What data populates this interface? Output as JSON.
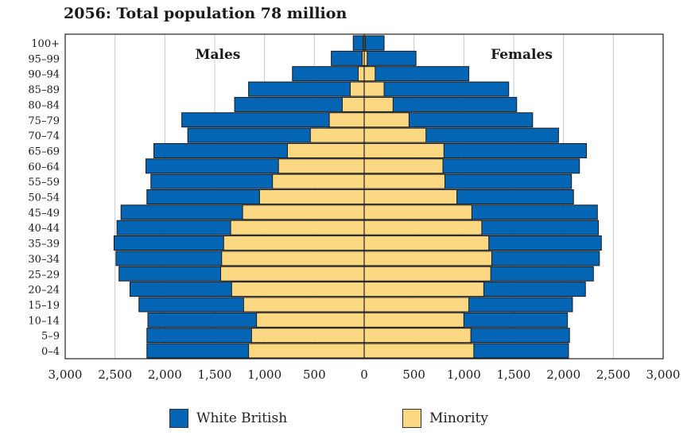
{
  "chart_data": {
    "type": "bar",
    "subtype": "population-pyramid",
    "title": "2056: Total population 78 million",
    "left_label": "Males",
    "right_label": "Females",
    "xlim": [
      -3000,
      3000
    ],
    "x_ticks": [
      -3000,
      -2500,
      -2000,
      -1500,
      -1000,
      -500,
      0,
      500,
      1000,
      1500,
      2000,
      2500,
      3000
    ],
    "x_tick_labels": [
      "3,000",
      "2,500",
      "2,000",
      "1,500",
      "1,000",
      "500",
      "0",
      "500",
      "1,000",
      "1,500",
      "2,000",
      "2,500",
      "3,000"
    ],
    "categories": [
      "100+",
      "95–99",
      "90–94",
      "85–89",
      "80–84",
      "75–79",
      "70–74",
      "65–69",
      "60–64",
      "55–59",
      "50–54",
      "45–49",
      "40–44",
      "35–39",
      "30–34",
      "25–29",
      "20–24",
      "15–19",
      "10–14",
      "5–9",
      "0–4"
    ],
    "series": [
      {
        "name": "Minority",
        "side": "male",
        "values": [
          10,
          20,
          60,
          140,
          220,
          350,
          540,
          770,
          860,
          920,
          1050,
          1220,
          1340,
          1410,
          1430,
          1440,
          1330,
          1210,
          1080,
          1130,
          1160
        ]
      },
      {
        "name": "White British",
        "side": "male",
        "values": [
          110,
          330,
          720,
          1160,
          1300,
          1830,
          1770,
          2110,
          2190,
          2140,
          2180,
          2440,
          2480,
          2510,
          2490,
          2460,
          2350,
          2260,
          2170,
          2180,
          2180
        ]
      },
      {
        "name": "Minority",
        "side": "female",
        "values": [
          10,
          30,
          110,
          200,
          290,
          450,
          620,
          800,
          790,
          810,
          930,
          1080,
          1180,
          1250,
          1280,
          1270,
          1200,
          1050,
          1000,
          1070,
          1100
        ]
      },
      {
        "name": "White British",
        "side": "female",
        "values": [
          200,
          520,
          1050,
          1450,
          1530,
          1690,
          1950,
          2230,
          2160,
          2080,
          2100,
          2340,
          2350,
          2380,
          2360,
          2300,
          2220,
          2090,
          2040,
          2060,
          2050
        ]
      }
    ],
    "legend": [
      {
        "label": "White British",
        "color": "#0565b5"
      },
      {
        "label": "Minority",
        "color": "#fcd882"
      }
    ],
    "colors": {
      "white_british": "#0565b5",
      "minority": "#fcd882",
      "grid": "#c8c8c8",
      "axis": "#222222"
    }
  }
}
